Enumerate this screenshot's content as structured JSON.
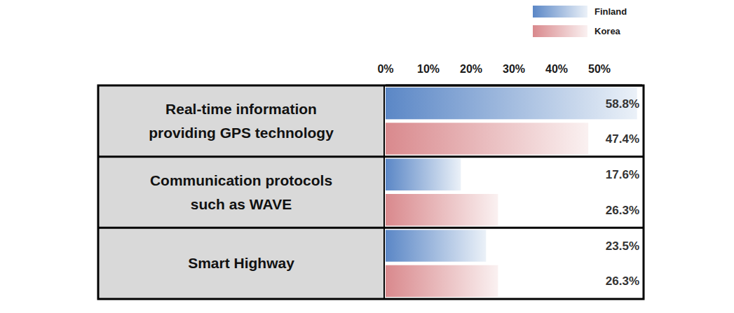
{
  "chart_data": {
    "type": "bar",
    "orientation": "horizontal",
    "categories": [
      "Real-time information\nproviding GPS technology",
      "Communication protocols\nsuch as WAVE",
      "Smart Highway"
    ],
    "series": [
      {
        "name": "Finland",
        "color": "#5b87c6",
        "values": [
          58.8,
          17.6,
          23.5
        ],
        "value_labels": [
          "58.8%",
          "17.6%",
          "23.5%"
        ]
      },
      {
        "name": "Korea",
        "color": "#d9898d",
        "values": [
          47.4,
          26.3,
          26.3
        ],
        "value_labels": [
          "47.4%",
          "26.3%",
          "26.3%"
        ]
      }
    ],
    "xlim": [
      0,
      60
    ],
    "xticks": [
      {
        "value": 0,
        "label": "0%"
      },
      {
        "value": 10,
        "label": "10%"
      },
      {
        "value": 20,
        "label": "20%"
      },
      {
        "value": 30,
        "label": "30%"
      },
      {
        "value": 40,
        "label": "40%"
      },
      {
        "value": 50,
        "label": "50%"
      }
    ],
    "grid": false,
    "legend": "top-right",
    "data_labels": true,
    "tick_labels": "x"
  }
}
